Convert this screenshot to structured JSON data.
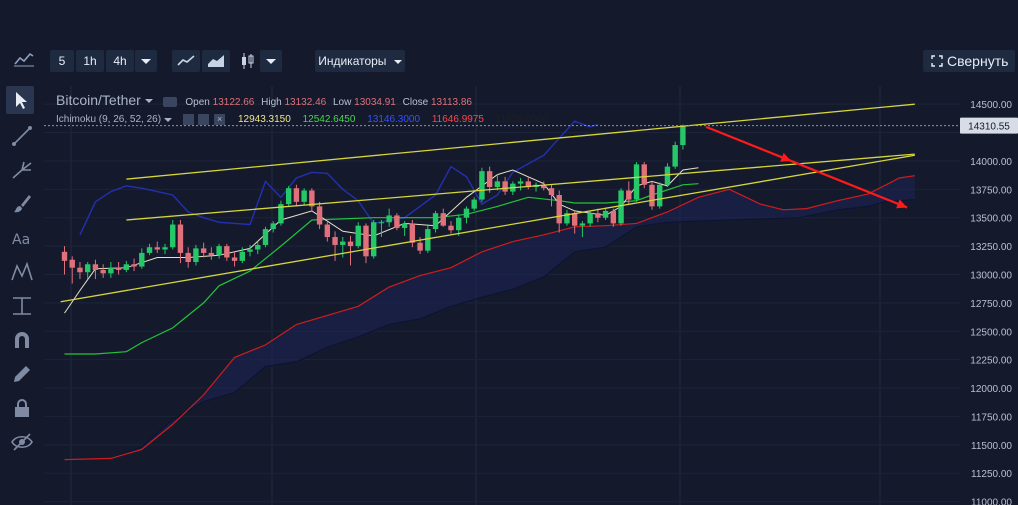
{
  "toolbar": {
    "intervals": [
      "5",
      "1h",
      "4h"
    ],
    "indicators_label": "Индикаторы",
    "collapse_label": "Свернуть"
  },
  "legend": {
    "pair": "Bitcoin/Tether",
    "open_label": "Open",
    "open": "13122.66",
    "high_label": "High",
    "high": "13132.46",
    "low_label": "Low",
    "low": "13034.91",
    "close_label": "Close",
    "close": "13113.86",
    "indicator": "Ichimoku (9, 26, 52, 26)",
    "values": [
      "12943.3150",
      "12542.6450",
      "13146.3000",
      "11646.9975",
      "11836.0500"
    ]
  },
  "colors": {
    "background": "#141a2c",
    "up": "#26c768",
    "down": "#e0707a",
    "tenkan": "#e8e2c6",
    "kijun": "#22c33a",
    "chikou": "#2330b0",
    "span_a": "#cf1d1d",
    "span_b": "#0c1436",
    "trendlines": "#d6d63a",
    "arrows": "#ff1a1a",
    "legend_values": [
      "#f1e68a",
      "#46d64e",
      "#3550ff",
      "#ff4646",
      "#202020"
    ]
  },
  "icons": [
    "chart-type-icon",
    "cursor-icon",
    "trendline-icon",
    "fork-icon",
    "brush-icon",
    "text-icon",
    "pattern-icon",
    "measure-icon",
    "magnet-icon",
    "pencil-icon",
    "lock-icon",
    "eye-off-icon"
  ],
  "chart_data": {
    "type": "candlestick",
    "y_ticks": [
      14500,
      14250,
      14000,
      13750,
      13500,
      13250,
      13000,
      12750,
      12500,
      12250,
      12000,
      11750,
      11500,
      11250,
      11000
    ],
    "y_tick_labels": [
      "14500.00",
      "14250.00",
      "14000.00",
      "13750.00",
      "13500.00",
      "13250.00",
      "13000.00",
      "12750.00",
      "12500.00",
      "12250.00",
      "12000.00",
      "11750.00",
      "11500.00",
      "11250.00",
      "11000.00"
    ],
    "ylim": [
      10970,
      14660
    ],
    "current_price": "14310.55",
    "candles": [
      [
        13200,
        13250,
        13000,
        13120
      ],
      [
        13130,
        13160,
        12920,
        13060
      ],
      [
        13060,
        13110,
        12960,
        13020
      ],
      [
        13020,
        13110,
        12960,
        13090
      ],
      [
        13090,
        13130,
        12960,
        13040
      ],
      [
        13040,
        13090,
        12970,
        13010
      ],
      [
        13010,
        13110,
        12970,
        13060
      ],
      [
        13060,
        13110,
        13000,
        13040
      ],
      [
        13040,
        13120,
        13020,
        13090
      ],
      [
        13090,
        13140,
        13030,
        13070
      ],
      [
        13070,
        13230,
        13050,
        13190
      ],
      [
        13190,
        13270,
        13170,
        13240
      ],
      [
        13240,
        13290,
        13190,
        13220
      ],
      [
        13220,
        13270,
        13180,
        13240
      ],
      [
        13240,
        13480,
        13220,
        13440
      ],
      [
        13440,
        13480,
        13100,
        13190
      ],
      [
        13190,
        13240,
        13060,
        13110
      ],
      [
        13110,
        13260,
        13080,
        13230
      ],
      [
        13230,
        13280,
        13150,
        13190
      ],
      [
        13190,
        13240,
        13130,
        13170
      ],
      [
        13170,
        13270,
        13140,
        13250
      ],
      [
        13250,
        13270,
        13120,
        13150
      ],
      [
        13150,
        13200,
        13070,
        13120
      ],
      [
        13120,
        13240,
        13100,
        13200
      ],
      [
        13200,
        13260,
        13160,
        13220
      ],
      [
        13220,
        13290,
        13180,
        13260
      ],
      [
        13260,
        13420,
        13240,
        13400
      ],
      [
        13400,
        13470,
        13370,
        13450
      ],
      [
        13450,
        13650,
        13430,
        13620
      ],
      [
        13620,
        13780,
        13600,
        13760
      ],
      [
        13760,
        13790,
        13600,
        13640
      ],
      [
        13640,
        13760,
        13610,
        13740
      ],
      [
        13740,
        13760,
        13550,
        13600
      ],
      [
        13600,
        13640,
        13400,
        13440
      ],
      [
        13440,
        13460,
        13290,
        13330
      ],
      [
        13330,
        13380,
        13120,
        13260
      ],
      [
        13260,
        13330,
        13150,
        13290
      ],
      [
        13290,
        13340,
        13080,
        13250
      ],
      [
        13250,
        13460,
        13230,
        13430
      ],
      [
        13430,
        13450,
        13100,
        13160
      ],
      [
        13160,
        13480,
        13140,
        13460
      ],
      [
        13460,
        13480,
        13330,
        13460
      ],
      [
        13460,
        13580,
        13420,
        13520
      ],
      [
        13520,
        13540,
        13390,
        13410
      ],
      [
        13410,
        13470,
        13340,
        13450
      ],
      [
        13450,
        13480,
        13240,
        13280
      ],
      [
        13280,
        13330,
        13180,
        13210
      ],
      [
        13210,
        13430,
        13190,
        13400
      ],
      [
        13400,
        13560,
        13370,
        13540
      ],
      [
        13540,
        13580,
        13420,
        13430
      ],
      [
        13430,
        13470,
        13360,
        13390
      ],
      [
        13390,
        13530,
        13340,
        13500
      ],
      [
        13500,
        13600,
        13450,
        13580
      ],
      [
        13580,
        13680,
        13560,
        13660
      ],
      [
        13660,
        13940,
        13640,
        13910
      ],
      [
        13910,
        13950,
        13720,
        13770
      ],
      [
        13770,
        13880,
        13740,
        13820
      ],
      [
        13820,
        13860,
        13700,
        13730
      ],
      [
        13730,
        13820,
        13700,
        13800
      ],
      [
        13800,
        13850,
        13740,
        13820
      ],
      [
        13820,
        13860,
        13750,
        13770
      ],
      [
        13770,
        13810,
        13730,
        13790
      ],
      [
        13790,
        13820,
        13740,
        13760
      ],
      [
        13760,
        13790,
        13600,
        13700
      ],
      [
        13700,
        13740,
        13370,
        13450
      ],
      [
        13450,
        13570,
        13430,
        13540
      ],
      [
        13540,
        13560,
        13360,
        13430
      ],
      [
        13430,
        13470,
        13330,
        13450
      ],
      [
        13450,
        13560,
        13420,
        13540
      ],
      [
        13540,
        13580,
        13460,
        13500
      ],
      [
        13500,
        13590,
        13480,
        13560
      ],
      [
        13560,
        13580,
        13420,
        13450
      ],
      [
        13450,
        13760,
        13430,
        13740
      ],
      [
        13740,
        13820,
        13620,
        13660
      ],
      [
        13660,
        13990,
        13640,
        13970
      ],
      [
        13970,
        13990,
        13760,
        13790
      ],
      [
        13790,
        13820,
        13570,
        13600
      ],
      [
        13600,
        13810,
        13580,
        13790
      ],
      [
        13790,
        13980,
        13770,
        13950
      ],
      [
        13950,
        14170,
        13930,
        14140
      ],
      [
        14140,
        14320,
        14100,
        14310
      ]
    ],
    "tenkan": [
      [
        0,
        12660
      ],
      [
        2,
        12860
      ],
      [
        4,
        13050
      ],
      [
        8,
        13060
      ],
      [
        12,
        13150
      ],
      [
        16,
        13150
      ],
      [
        20,
        13170
      ],
      [
        24,
        13230
      ],
      [
        28,
        13480
      ],
      [
        32,
        13560
      ],
      [
        36,
        13380
      ],
      [
        40,
        13340
      ],
      [
        44,
        13450
      ],
      [
        48,
        13430
      ],
      [
        52,
        13680
      ],
      [
        56,
        13880
      ],
      [
        58,
        13920
      ],
      [
        62,
        13800
      ],
      [
        64,
        13620
      ],
      [
        66,
        13560
      ],
      [
        70,
        13520
      ],
      [
        72,
        13600
      ],
      [
        74,
        13780
      ],
      [
        76,
        13820
      ],
      [
        78,
        13780
      ],
      [
        80,
        13920
      ],
      [
        82,
        13940
      ]
    ],
    "kijun": [
      [
        0,
        12300
      ],
      [
        4,
        12300
      ],
      [
        8,
        12320
      ],
      [
        10,
        12400
      ],
      [
        14,
        12530
      ],
      [
        18,
        12750
      ],
      [
        20,
        12900
      ],
      [
        24,
        13030
      ],
      [
        28,
        13250
      ],
      [
        32,
        13480
      ],
      [
        36,
        13490
      ],
      [
        40,
        13500
      ],
      [
        44,
        13500
      ],
      [
        48,
        13500
      ],
      [
        52,
        13530
      ],
      [
        56,
        13600
      ],
      [
        60,
        13680
      ],
      [
        64,
        13650
      ],
      [
        66,
        13630
      ],
      [
        70,
        13630
      ],
      [
        74,
        13650
      ],
      [
        76,
        13700
      ],
      [
        80,
        13790
      ],
      [
        82,
        13800
      ]
    ],
    "chikou": [
      [
        2,
        13350
      ],
      [
        4,
        13640
      ],
      [
        6,
        13730
      ],
      [
        8,
        13780
      ],
      [
        10,
        13760
      ],
      [
        14,
        13700
      ],
      [
        16,
        13550
      ],
      [
        18,
        13500
      ],
      [
        20,
        13460
      ],
      [
        24,
        13440
      ],
      [
        26,
        13820
      ],
      [
        28,
        13680
      ],
      [
        30,
        13850
      ],
      [
        32,
        13900
      ],
      [
        34,
        13890
      ],
      [
        36,
        13750
      ],
      [
        38,
        13650
      ],
      [
        40,
        13450
      ],
      [
        44,
        13500
      ],
      [
        48,
        13700
      ],
      [
        50,
        13950
      ],
      [
        52,
        13860
      ],
      [
        54,
        13620
      ],
      [
        56,
        13700
      ],
      [
        58,
        13900
      ],
      [
        62,
        14050
      ],
      [
        64,
        14200
      ],
      [
        66,
        14350
      ],
      [
        68,
        14300
      ],
      [
        69,
        14320
      ]
    ],
    "span_a": [
      [
        0,
        11370
      ],
      [
        6,
        11380
      ],
      [
        10,
        11460
      ],
      [
        14,
        11680
      ],
      [
        18,
        11940
      ],
      [
        22,
        12270
      ],
      [
        26,
        12380
      ],
      [
        30,
        12560
      ],
      [
        34,
        12640
      ],
      [
        38,
        12720
      ],
      [
        42,
        12890
      ],
      [
        46,
        12990
      ],
      [
        50,
        13060
      ],
      [
        54,
        13200
      ],
      [
        58,
        13290
      ],
      [
        62,
        13350
      ],
      [
        66,
        13420
      ],
      [
        70,
        13430
      ],
      [
        74,
        13450
      ],
      [
        78,
        13550
      ],
      [
        82,
        13680
      ],
      [
        86,
        13750
      ],
      [
        90,
        13620
      ],
      [
        93,
        13570
      ],
      [
        96,
        13580
      ],
      [
        100,
        13650
      ],
      [
        104,
        13710
      ],
      [
        106,
        13780
      ],
      [
        108,
        13850
      ],
      [
        110,
        13870
      ]
    ],
    "span_b": [
      [
        0,
        11370
      ],
      [
        6,
        11380
      ],
      [
        10,
        11480
      ],
      [
        14,
        11720
      ],
      [
        18,
        11880
      ],
      [
        22,
        11960
      ],
      [
        26,
        12190
      ],
      [
        30,
        12230
      ],
      [
        34,
        12360
      ],
      [
        38,
        12450
      ],
      [
        42,
        12560
      ],
      [
        46,
        12610
      ],
      [
        50,
        12720
      ],
      [
        54,
        12800
      ],
      [
        58,
        12870
      ],
      [
        62,
        12980
      ],
      [
        66,
        13200
      ],
      [
        70,
        13240
      ],
      [
        74,
        13420
      ],
      [
        78,
        13460
      ],
      [
        82,
        13470
      ],
      [
        86,
        13480
      ],
      [
        90,
        13490
      ],
      [
        95,
        13500
      ],
      [
        100,
        13570
      ],
      [
        104,
        13600
      ],
      [
        106,
        13640
      ],
      [
        108,
        13650
      ],
      [
        110,
        13660
      ]
    ],
    "trendlines": [
      [
        [
          -0.5,
          12760
        ],
        [
          110,
          14050
        ]
      ],
      [
        [
          8,
          13840
        ],
        [
          110,
          14500
        ]
      ],
      [
        [
          8,
          13480
        ],
        [
          110,
          14060
        ]
      ]
    ],
    "arrows": [
      [
        [
          83,
          14300
        ],
        [
          94,
          14000
        ]
      ],
      [
        [
          94,
          14000
        ],
        [
          109,
          13590
        ]
      ]
    ]
  }
}
